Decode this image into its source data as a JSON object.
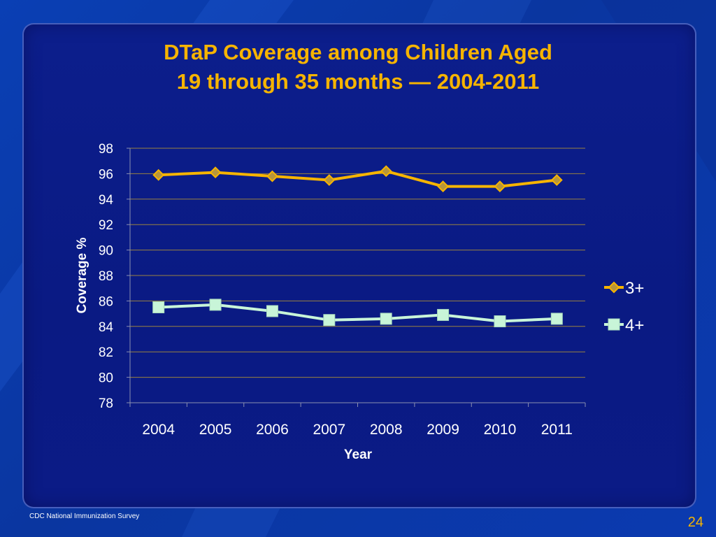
{
  "title": {
    "line1": "DTaP Coverage among Children Aged",
    "line2": "19 through 35 months — 2004-2011"
  },
  "footer": {
    "source": "CDC National Immunization Survey",
    "page_number": "24"
  },
  "colors": {
    "title": "#f6b400",
    "series_3plus": "#f6b400",
    "series_4plus": "#c8f5d8",
    "text": "#ffffff"
  },
  "chart_data": {
    "type": "line",
    "title": "DTaP Coverage among Children Aged 19 through 35 months — 2004-2011",
    "xlabel": "Year",
    "ylabel": "Coverage %",
    "categories": [
      "2004",
      "2005",
      "2006",
      "2007",
      "2008",
      "2009",
      "2010",
      "2011"
    ],
    "yticks": [
      "78",
      "80",
      "82",
      "84",
      "86",
      "88",
      "90",
      "92",
      "94",
      "96",
      "98"
    ],
    "ylim": [
      78,
      98
    ],
    "grid": "horizontal",
    "legend_position": "right",
    "series": [
      {
        "name": "3+",
        "marker": "diamond",
        "values": [
          95.9,
          96.1,
          95.8,
          95.5,
          96.2,
          95.0,
          95.0,
          95.5
        ]
      },
      {
        "name": "4+",
        "marker": "square",
        "values": [
          85.5,
          85.7,
          85.2,
          84.5,
          84.6,
          84.9,
          84.4,
          84.6
        ]
      }
    ]
  }
}
